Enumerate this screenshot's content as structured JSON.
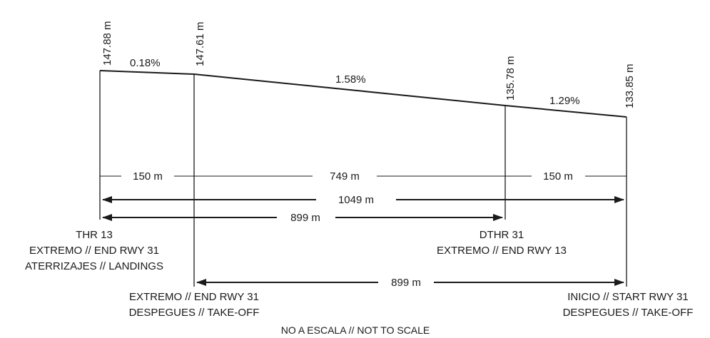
{
  "elevations": {
    "thr13": "147.88 m",
    "end_takeoff_rwy31": "147.61 m",
    "dthr31": "135.78 m",
    "start_rwy31": "133.85 m"
  },
  "slopes": {
    "seg1": "0.18%",
    "seg2": "1.58%",
    "seg3": "1.29%"
  },
  "distances": {
    "seg1": "150 m",
    "seg2": "749 m",
    "seg3": "150 m",
    "total": "1049 m",
    "landing": "899 m",
    "takeoff": "899 m"
  },
  "labels": {
    "thr13": [
      "THR 13",
      "EXTREMO // END RWY 31",
      "ATERRIZAJES // LANDINGS"
    ],
    "dthr31": [
      "DTHR 31",
      "EXTREMO // END RWY 13"
    ],
    "end_takeoff": [
      "EXTREMO // END RWY 31",
      "DESPEGUES // TAKE-OFF"
    ],
    "start_takeoff": [
      "INICIO // START RWY 31",
      "DESPEGUES // TAKE-OFF"
    ]
  },
  "note": "NO A ESCALA // NOT TO SCALE"
}
